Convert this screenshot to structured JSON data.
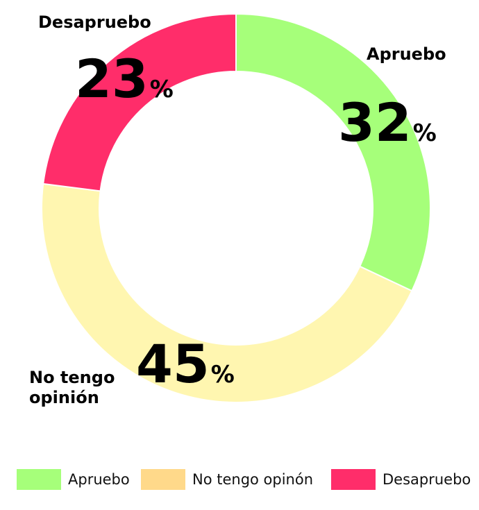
{
  "chart_data": {
    "type": "pie",
    "donut": true,
    "slices": [
      {
        "name": "Apruebo",
        "value": 32,
        "label": "Apruebo",
        "number": "32",
        "unit": "%",
        "color": "#a6ff7a"
      },
      {
        "name": "No tengo opinón",
        "value": 45,
        "label_lines": [
          "No tengo",
          "opinión"
        ],
        "number": "45",
        "unit": "%",
        "color": "#fff6b0"
      },
      {
        "name": "Desapruebo",
        "value": 23,
        "label": "Desapruebo",
        "number": "23",
        "unit": "%",
        "color": "#ff2d6a"
      }
    ],
    "legend": {
      "placement": "bottom",
      "items": [
        {
          "label": "Apruebo",
          "color": "#a6ff7a"
        },
        {
          "label": "No tengo opinón",
          "color": "#ffd98a"
        },
        {
          "label": "Desapruebo",
          "color": "#ff2d6a"
        }
      ]
    }
  }
}
